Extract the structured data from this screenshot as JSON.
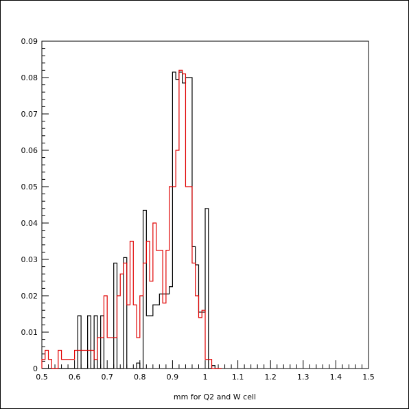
{
  "chart_data": {
    "type": "histogram",
    "title": "",
    "xlabel": "mm for Q2 and W cell",
    "ylabel": "",
    "xlim": [
      0.5,
      1.5
    ],
    "ylim": [
      0,
      0.09
    ],
    "grid": false,
    "bin_width": 0.01,
    "x_ticks": [
      "0.5",
      "0.6",
      "0.7",
      "0.8",
      "0.9",
      "1",
      "1.1",
      "1.2",
      "1.3",
      "1.4",
      "1.5"
    ],
    "y_ticks": [
      "0",
      "0.01",
      "0.02",
      "0.03",
      "0.04",
      "0.05",
      "0.06",
      "0.07",
      "0.08",
      "0.09"
    ],
    "series": [
      {
        "color": "#000000",
        "bins": [
          [
            0.5,
            0.0
          ],
          [
            0.51,
            0.0
          ],
          [
            0.52,
            0.0
          ],
          [
            0.53,
            0.0
          ],
          [
            0.54,
            0.0
          ],
          [
            0.55,
            0.0
          ],
          [
            0.56,
            0.0
          ],
          [
            0.57,
            0.0
          ],
          [
            0.58,
            0.0
          ],
          [
            0.59,
            0.0
          ],
          [
            0.6,
            0.0
          ],
          [
            0.61,
            0.0145
          ],
          [
            0.62,
            0.0
          ],
          [
            0.63,
            0.0
          ],
          [
            0.64,
            0.0145
          ],
          [
            0.65,
            0.0
          ],
          [
            0.66,
            0.0145
          ],
          [
            0.67,
            0.0
          ],
          [
            0.68,
            0.0145
          ],
          [
            0.69,
            0.0
          ],
          [
            0.7,
            0.0
          ],
          [
            0.71,
            0.0
          ],
          [
            0.72,
            0.029
          ],
          [
            0.73,
            0.0
          ],
          [
            0.74,
            0.0
          ],
          [
            0.75,
            0.0305
          ],
          [
            0.76,
            0.0
          ],
          [
            0.77,
            0.0
          ],
          [
            0.78,
            0.0
          ],
          [
            0.79,
            0.0015
          ],
          [
            0.8,
            0.0
          ],
          [
            0.81,
            0.0435
          ],
          [
            0.82,
            0.0145
          ],
          [
            0.83,
            0.0145
          ],
          [
            0.84,
            0.0175
          ],
          [
            0.85,
            0.0175
          ],
          [
            0.86,
            0.0205
          ],
          [
            0.87,
            0.0205
          ],
          [
            0.88,
            0.0205
          ],
          [
            0.89,
            0.0225
          ],
          [
            0.9,
            0.0815
          ],
          [
            0.91,
            0.0795
          ],
          [
            0.92,
            0.0815
          ],
          [
            0.93,
            0.0785
          ],
          [
            0.94,
            0.08
          ],
          [
            0.95,
            0.08
          ],
          [
            0.96,
            0.0335
          ],
          [
            0.97,
            0.0285
          ],
          [
            0.98,
            0.0155
          ],
          [
            0.99,
            0.0155
          ],
          [
            1.0,
            0.044
          ],
          [
            1.01,
            0.0
          ],
          [
            1.02,
            0.0008
          ],
          [
            1.03,
            0.0
          ],
          [
            1.04,
            0.0
          ]
        ]
      },
      {
        "color": "#e00000",
        "bins": [
          [
            0.5,
            0.0025
          ],
          [
            0.51,
            0.005
          ],
          [
            0.52,
            0.0025
          ],
          [
            0.53,
            0.0
          ],
          [
            0.54,
            0.0
          ],
          [
            0.55,
            0.005
          ],
          [
            0.56,
            0.0025
          ],
          [
            0.57,
            0.0025
          ],
          [
            0.58,
            0.0025
          ],
          [
            0.59,
            0.0025
          ],
          [
            0.6,
            0.005
          ],
          [
            0.61,
            0.005
          ],
          [
            0.62,
            0.005
          ],
          [
            0.63,
            0.005
          ],
          [
            0.64,
            0.005
          ],
          [
            0.65,
            0.005
          ],
          [
            0.66,
            0.0025
          ],
          [
            0.67,
            0.0085
          ],
          [
            0.68,
            0.0085
          ],
          [
            0.69,
            0.02
          ],
          [
            0.7,
            0.0085
          ],
          [
            0.71,
            0.0085
          ],
          [
            0.72,
            0.0085
          ],
          [
            0.73,
            0.02
          ],
          [
            0.74,
            0.026
          ],
          [
            0.75,
            0.029
          ],
          [
            0.76,
            0.0175
          ],
          [
            0.77,
            0.035
          ],
          [
            0.78,
            0.0175
          ],
          [
            0.79,
            0.0085
          ],
          [
            0.8,
            0.02
          ],
          [
            0.81,
            0.029
          ],
          [
            0.82,
            0.035
          ],
          [
            0.83,
            0.024
          ],
          [
            0.84,
            0.04
          ],
          [
            0.85,
            0.0325
          ],
          [
            0.86,
            0.0325
          ],
          [
            0.87,
            0.018
          ],
          [
            0.88,
            0.0325
          ],
          [
            0.89,
            0.05
          ],
          [
            0.9,
            0.05
          ],
          [
            0.91,
            0.06
          ],
          [
            0.92,
            0.082
          ],
          [
            0.93,
            0.081
          ],
          [
            0.94,
            0.05
          ],
          [
            0.95,
            0.05
          ],
          [
            0.96,
            0.029
          ],
          [
            0.97,
            0.02
          ],
          [
            0.98,
            0.014
          ],
          [
            0.99,
            0.016
          ],
          [
            1.0,
            0.0025
          ],
          [
            1.01,
            0.0025
          ],
          [
            1.02,
            0.0
          ],
          [
            1.03,
            0.0
          ],
          [
            1.04,
            0.0
          ]
        ]
      }
    ]
  }
}
